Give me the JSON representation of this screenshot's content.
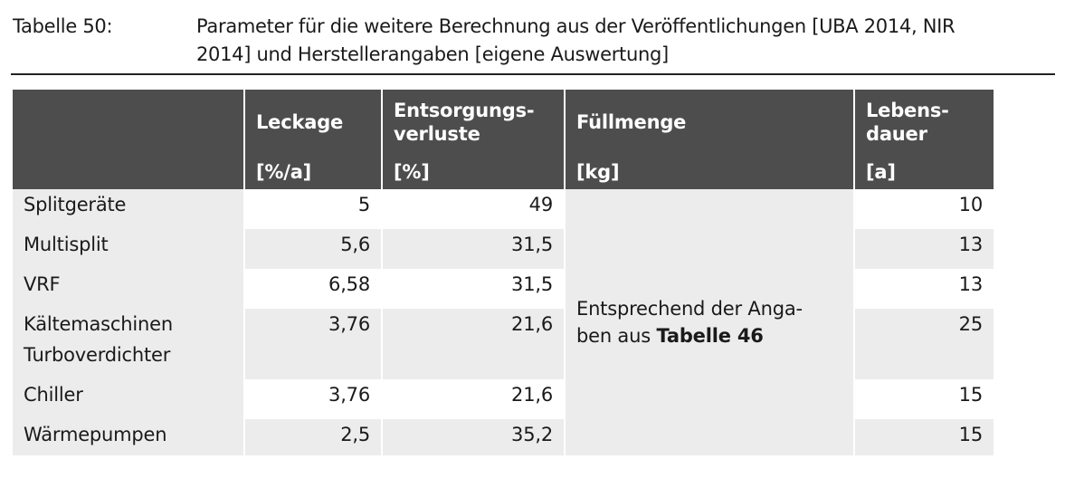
{
  "caption": {
    "label": "Tabelle 50:",
    "text_line1": "Parameter für die weitere Berechnung aus der Veröffentlichungen [UBA 2014, NIR",
    "text_line2": "2014] und Herstellerangaben [eigene Auswertung]"
  },
  "table": {
    "headers": {
      "leckage": "Leckage",
      "entsorgung_line1": "Entsorgungs-",
      "entsorgung_line2": "verluste",
      "fuellmenge": "Füllmenge",
      "lebensdauer_line1": "Lebens-",
      "lebensdauer_line2": "dauer"
    },
    "units": {
      "leckage": "[%/a]",
      "entsorgung": "[%]",
      "fuellmenge": "[kg]",
      "lebensdauer": "[a]"
    },
    "rows": [
      {
        "name_line1": "Splitgeräte",
        "name_line2": "",
        "leckage": "5",
        "entsorgung": "49",
        "lebensdauer": "10"
      },
      {
        "name_line1": "Multisplit",
        "name_line2": "",
        "leckage": "5,6",
        "entsorgung": "31,5",
        "lebensdauer": "13"
      },
      {
        "name_line1": "VRF",
        "name_line2": "",
        "leckage": "6,58",
        "entsorgung": "31,5",
        "lebensdauer": "13"
      },
      {
        "name_line1": "Kältemaschinen",
        "name_line2": "Turboverdichter",
        "leckage": "3,76",
        "entsorgung": "21,6",
        "lebensdauer": "25"
      },
      {
        "name_line1": "Chiller",
        "name_line2": "",
        "leckage": "3,76",
        "entsorgung": "21,6",
        "lebensdauer": "15"
      },
      {
        "name_line1": "Wärmepumpen",
        "name_line2": "",
        "leckage": "2,5",
        "entsorgung": "35,2",
        "lebensdauer": "15"
      }
    ],
    "fuellmenge_note": {
      "line1": "Entsprechend der Anga-",
      "line2_prefix": "ben aus ",
      "line2_bold": "Tabelle 46"
    }
  }
}
